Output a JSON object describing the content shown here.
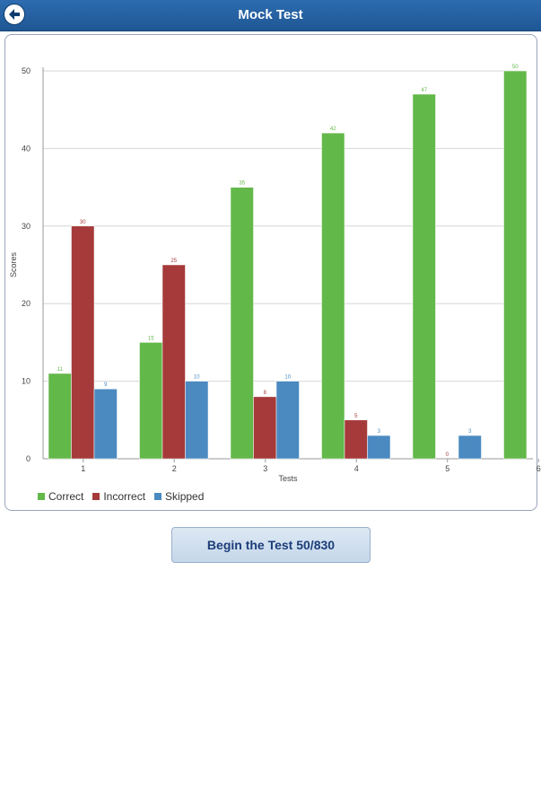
{
  "header": {
    "title": "Mock Test",
    "back_icon": "back-arrow-icon"
  },
  "colors": {
    "correct": "#63b84a",
    "incorrect": "#a63a3a",
    "skipped": "#4b8ac1",
    "header": "#2563a8"
  },
  "chart_data": {
    "type": "bar",
    "categories": [
      "1",
      "2",
      "3",
      "4",
      "5",
      "6"
    ],
    "series": [
      {
        "name": "Correct",
        "values": [
          11,
          15,
          35,
          42,
          47,
          50
        ]
      },
      {
        "name": "Incorrect",
        "values": [
          30,
          25,
          8,
          5,
          0,
          null
        ]
      },
      {
        "name": "Skipped",
        "values": [
          9,
          10,
          10,
          3,
          3,
          null
        ]
      }
    ],
    "xlabel": "Tests",
    "ylabel": "Scores",
    "ylim": [
      0,
      50
    ],
    "yticks": [
      0,
      10,
      20,
      30,
      40,
      50
    ],
    "grid": true,
    "legend": "bottom-left"
  },
  "actions": {
    "begin_label": "Begin the Test 50/830"
  }
}
